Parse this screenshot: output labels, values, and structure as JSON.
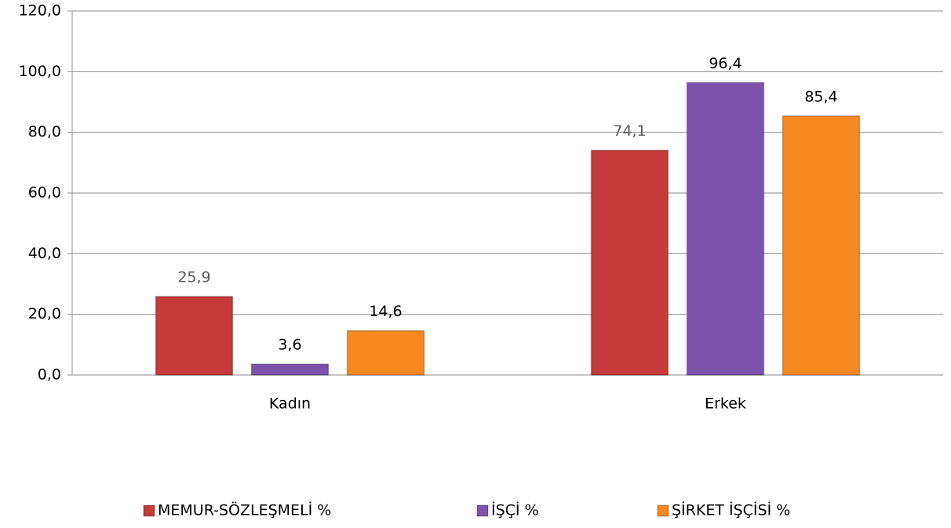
{
  "chart_data": {
    "type": "bar",
    "categories": [
      "Kadın",
      "Erkek"
    ],
    "series": [
      {
        "name": "MEMUR-SÖZLEŞMELİ %",
        "color": "#c63a3a",
        "values": [
          25.9,
          74.1
        ],
        "value_labels": [
          "25,9",
          "74,1"
        ]
      },
      {
        "name": "İŞÇİ %",
        "color": "#7d52ad",
        "values": [
          3.6,
          96.4
        ],
        "value_labels": [
          "3,6",
          "96,4"
        ]
      },
      {
        "name": "ŞİRKET İŞÇİSİ %",
        "color": "#f5891f",
        "values": [
          14.6,
          85.4
        ],
        "value_labels": [
          "14,6",
          "85,4"
        ]
      }
    ],
    "ylim": [
      0,
      120
    ],
    "yticks": [
      {
        "value": 0,
        "label": "0,0"
      },
      {
        "value": 20,
        "label": "20,0"
      },
      {
        "value": 40,
        "label": "40,0"
      },
      {
        "value": 60,
        "label": "60,0"
      },
      {
        "value": 80,
        "label": "80,0"
      },
      {
        "value": 100,
        "label": "100,0"
      },
      {
        "value": 120,
        "label": "120,0"
      }
    ],
    "grid": true,
    "legend": "bottom"
  }
}
